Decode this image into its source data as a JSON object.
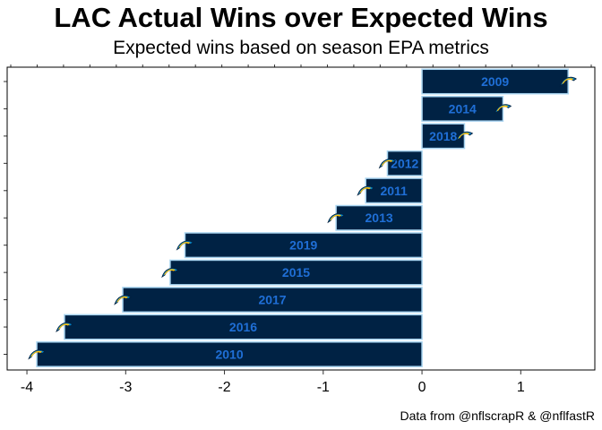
{
  "chart_data": {
    "type": "bar",
    "orientation": "horizontal",
    "title": "LAC Actual Wins over Expected Wins",
    "subtitle": "Expected wins based on season EPA metrics",
    "caption": "Data from @nflscrapR & @nflfastR",
    "xlabel": "",
    "ylabel": "",
    "xlim": [
      -4.2,
      1.75
    ],
    "xticks": [
      -4,
      -3,
      -2,
      -1,
      0,
      1
    ],
    "grid": false,
    "categories": [
      "2009",
      "2014",
      "2018",
      "2012",
      "2011",
      "2013",
      "2019",
      "2015",
      "2017",
      "2016",
      "2010"
    ],
    "values": [
      1.48,
      0.82,
      0.43,
      -0.35,
      -0.57,
      -0.87,
      -2.4,
      -2.55,
      -3.03,
      -3.62,
      -3.9
    ],
    "bar_color": "#002244",
    "bar_outline_color": "#a8d4f0",
    "label_color": "#1f6fd6",
    "logo_icon": "chargers-bolt-icon"
  }
}
